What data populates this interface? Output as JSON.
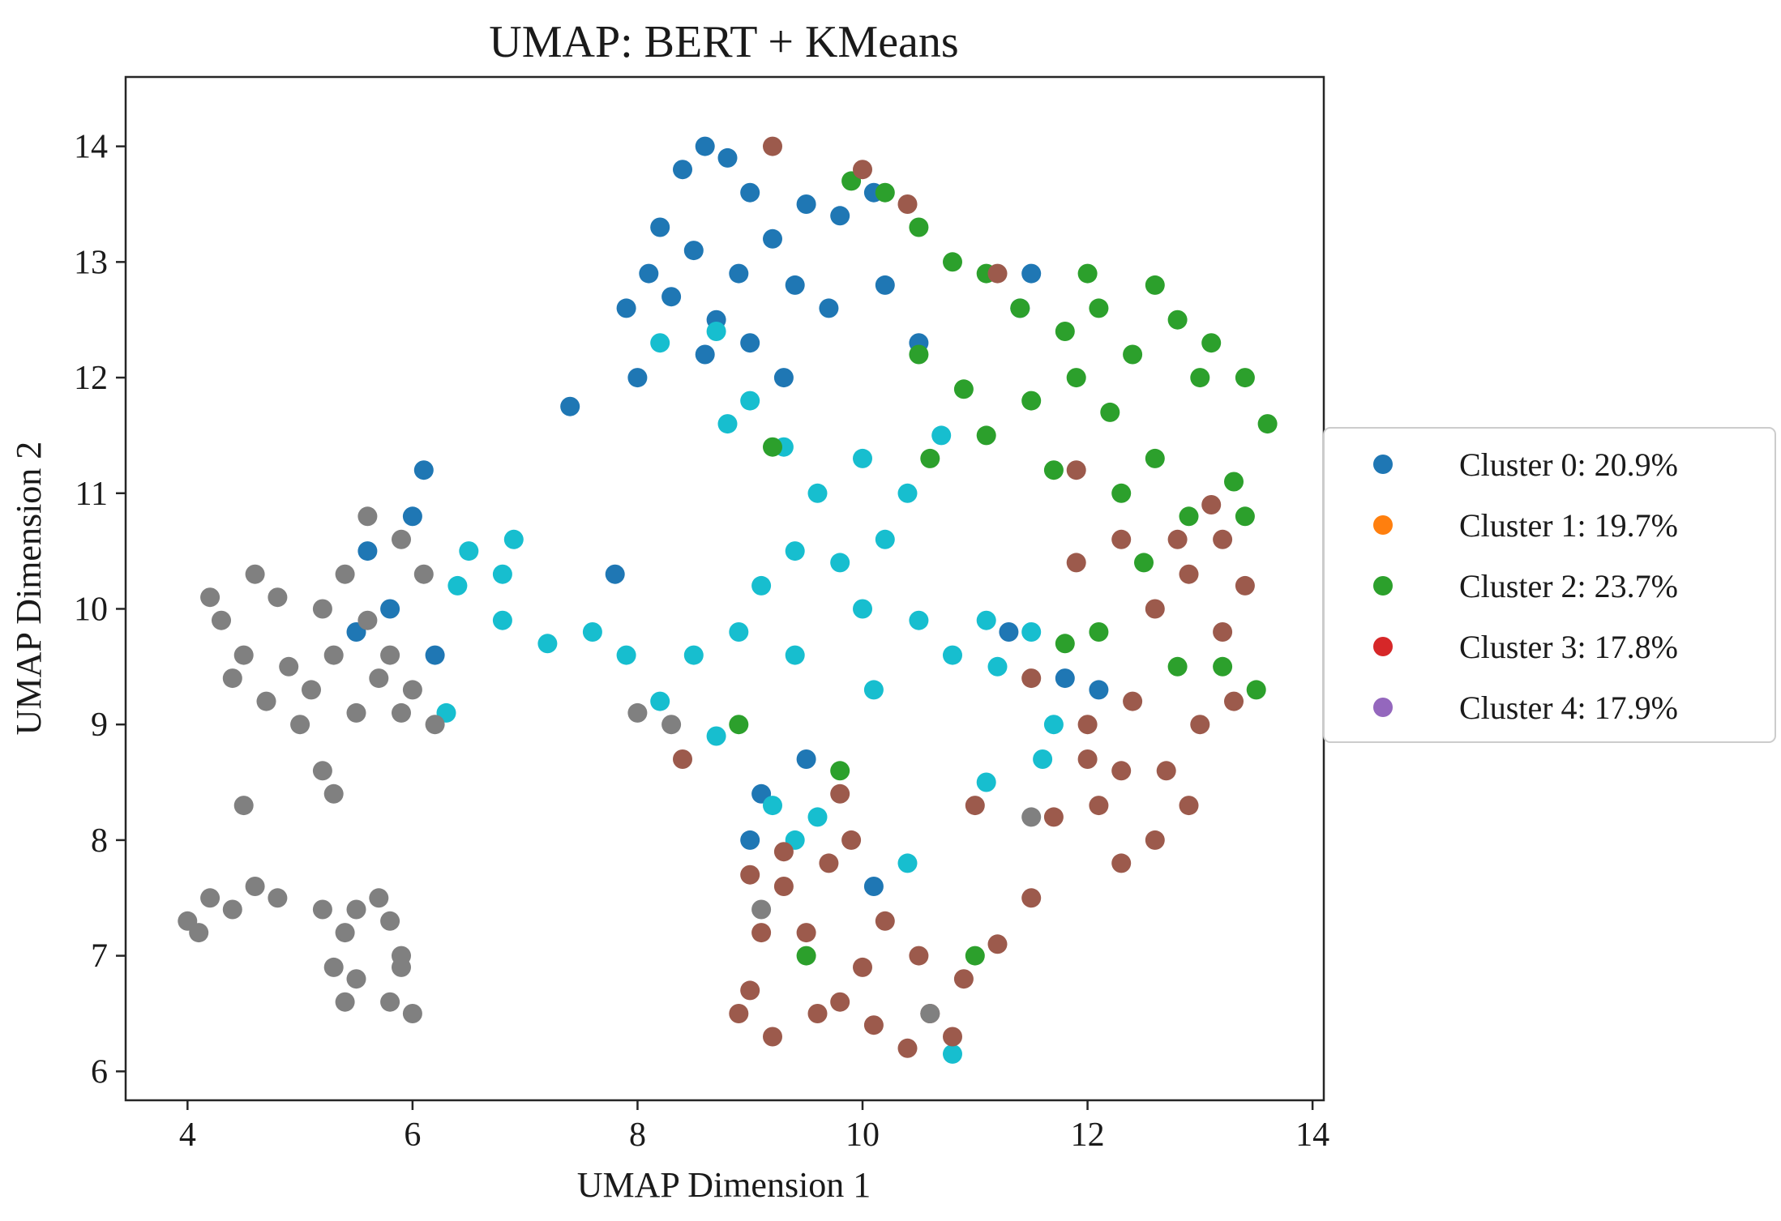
{
  "chart_data": {
    "type": "scatter",
    "title": "UMAP: BERT + KMeans",
    "xlabel": "UMAP Dimension 1",
    "ylabel": "UMAP Dimension 2",
    "xlim": [
      3.45,
      14.1
    ],
    "ylim": [
      5.75,
      14.6
    ],
    "xticks": [
      4,
      6,
      8,
      10,
      12,
      14
    ],
    "yticks": [
      6,
      7,
      8,
      9,
      10,
      11,
      12,
      13,
      14
    ],
    "grid": false,
    "legend_placement": "right, outside plot",
    "legend": [
      {
        "label": "Cluster 0: 20.9%",
        "color": "#1f77b4"
      },
      {
        "label": "Cluster 1: 19.7%",
        "color": "#ff7f0e"
      },
      {
        "label": "Cluster 2: 23.7%",
        "color": "#2ca02c"
      },
      {
        "label": "Cluster 3: 17.8%",
        "color": "#d62728"
      },
      {
        "label": "Cluster 4: 17.9%",
        "color": "#9467bd"
      }
    ],
    "series": [
      {
        "color": "#1f77b4",
        "points": [
          [
            8.2,
            13.3
          ],
          [
            8.4,
            13.8
          ],
          [
            8.6,
            14.0
          ],
          [
            8.8,
            13.9
          ],
          [
            9.0,
            13.6
          ],
          [
            8.5,
            13.1
          ],
          [
            8.3,
            12.7
          ],
          [
            8.7,
            12.5
          ],
          [
            9.2,
            13.2
          ],
          [
            9.5,
            13.5
          ],
          [
            9.8,
            13.4
          ],
          [
            10.1,
            13.6
          ],
          [
            8.1,
            12.9
          ],
          [
            7.9,
            12.6
          ],
          [
            8.9,
            12.9
          ],
          [
            9.4,
            12.8
          ],
          [
            9.7,
            12.6
          ],
          [
            10.2,
            12.8
          ],
          [
            8.6,
            12.2
          ],
          [
            9.0,
            12.3
          ],
          [
            7.4,
            11.75
          ],
          [
            8.0,
            12.0
          ],
          [
            9.3,
            12.0
          ],
          [
            10.5,
            12.3
          ],
          [
            11.5,
            12.9
          ],
          [
            11.4,
            12.6
          ],
          [
            5.6,
            10.5
          ],
          [
            5.8,
            10.0
          ],
          [
            6.0,
            10.8
          ],
          [
            6.1,
            11.2
          ],
          [
            5.5,
            9.8
          ],
          [
            6.2,
            9.6
          ],
          [
            7.8,
            10.3
          ],
          [
            11.3,
            9.8
          ],
          [
            11.8,
            9.4
          ],
          [
            12.1,
            9.3
          ],
          [
            9.5,
            8.7
          ],
          [
            9.1,
            8.4
          ],
          [
            10.1,
            7.6
          ],
          [
            9.0,
            8.0
          ]
        ]
      },
      {
        "color": "#17becf",
        "points": [
          [
            8.7,
            12.4
          ],
          [
            9.0,
            11.8
          ],
          [
            9.3,
            11.4
          ],
          [
            9.6,
            11.0
          ],
          [
            10.0,
            11.3
          ],
          [
            10.4,
            11.0
          ],
          [
            10.2,
            10.6
          ],
          [
            9.8,
            10.4
          ],
          [
            9.4,
            10.5
          ],
          [
            9.1,
            10.2
          ],
          [
            8.9,
            9.8
          ],
          [
            9.4,
            9.6
          ],
          [
            10.0,
            10.0
          ],
          [
            10.5,
            9.9
          ],
          [
            10.8,
            9.6
          ],
          [
            11.2,
            9.5
          ],
          [
            11.5,
            9.8
          ],
          [
            11.1,
            9.9
          ],
          [
            11.7,
            9.0
          ],
          [
            8.5,
            9.6
          ],
          [
            8.2,
            9.2
          ],
          [
            8.7,
            8.9
          ],
          [
            9.2,
            8.3
          ],
          [
            9.6,
            8.2
          ],
          [
            9.4,
            8.0
          ],
          [
            7.6,
            9.8
          ],
          [
            7.2,
            9.7
          ],
          [
            6.8,
            9.9
          ],
          [
            6.5,
            10.5
          ],
          [
            6.8,
            10.3
          ],
          [
            6.9,
            10.6
          ],
          [
            6.4,
            10.2
          ],
          [
            6.3,
            9.1
          ],
          [
            10.1,
            9.3
          ],
          [
            11.1,
            8.5
          ],
          [
            10.4,
            7.8
          ],
          [
            8.2,
            12.3
          ],
          [
            8.8,
            11.6
          ],
          [
            10.7,
            11.5
          ],
          [
            7.9,
            9.6
          ],
          [
            11.6,
            8.7
          ],
          [
            10.8,
            6.15
          ]
        ]
      },
      {
        "color": "#2ca02c",
        "points": [
          [
            10.2,
            13.6
          ],
          [
            10.5,
            13.3
          ],
          [
            10.8,
            13.0
          ],
          [
            11.1,
            12.9
          ],
          [
            11.4,
            12.6
          ],
          [
            11.8,
            12.4
          ],
          [
            12.1,
            12.6
          ],
          [
            12.4,
            12.2
          ],
          [
            12.8,
            12.5
          ],
          [
            13.1,
            12.3
          ],
          [
            13.4,
            12.0
          ],
          [
            13.6,
            11.6
          ],
          [
            13.3,
            11.1
          ],
          [
            12.9,
            10.8
          ],
          [
            12.6,
            11.3
          ],
          [
            12.2,
            11.7
          ],
          [
            11.9,
            12.0
          ],
          [
            11.5,
            11.8
          ],
          [
            11.1,
            11.5
          ],
          [
            10.6,
            11.3
          ],
          [
            10.9,
            11.9
          ],
          [
            10.5,
            12.2
          ],
          [
            12.0,
            12.9
          ],
          [
            12.6,
            12.8
          ],
          [
            13.0,
            12.0
          ],
          [
            13.4,
            10.8
          ],
          [
            12.5,
            10.4
          ],
          [
            12.1,
            9.8
          ],
          [
            11.8,
            9.7
          ],
          [
            13.2,
            9.5
          ],
          [
            12.8,
            9.5
          ],
          [
            13.5,
            9.3
          ],
          [
            9.9,
            13.7
          ],
          [
            9.2,
            11.4
          ],
          [
            9.8,
            8.6
          ],
          [
            9.5,
            7.0
          ],
          [
            11.0,
            7.0
          ],
          [
            8.9,
            9.0
          ],
          [
            11.7,
            11.2
          ],
          [
            12.3,
            11.0
          ]
        ]
      },
      {
        "color": "#9c5a4c",
        "points": [
          [
            12.6,
            10.0
          ],
          [
            12.9,
            10.3
          ],
          [
            13.2,
            10.6
          ],
          [
            13.4,
            10.2
          ],
          [
            13.2,
            9.8
          ],
          [
            13.3,
            9.2
          ],
          [
            13.0,
            9.0
          ],
          [
            12.7,
            8.6
          ],
          [
            12.9,
            8.3
          ],
          [
            12.6,
            8.0
          ],
          [
            12.3,
            7.8
          ],
          [
            12.1,
            8.3
          ],
          [
            12.4,
            9.2
          ],
          [
            12.3,
            8.6
          ],
          [
            12.0,
            8.7
          ],
          [
            11.7,
            8.2
          ],
          [
            11.5,
            7.5
          ],
          [
            11.2,
            7.1
          ],
          [
            10.9,
            6.8
          ],
          [
            10.6,
            6.5
          ],
          [
            10.4,
            6.2
          ],
          [
            10.1,
            6.4
          ],
          [
            10.0,
            6.9
          ],
          [
            10.2,
            7.3
          ],
          [
            10.5,
            7.0
          ],
          [
            10.8,
            6.3
          ],
          [
            9.8,
            6.6
          ],
          [
            9.2,
            6.3
          ],
          [
            9.0,
            6.7
          ],
          [
            9.1,
            7.2
          ],
          [
            9.3,
            7.6
          ],
          [
            9.5,
            7.2
          ],
          [
            9.6,
            6.5
          ],
          [
            8.9,
            6.5
          ],
          [
            9.7,
            7.8
          ],
          [
            9.9,
            8.0
          ],
          [
            9.3,
            7.9
          ],
          [
            9.0,
            7.7
          ],
          [
            11.2,
            12.9
          ],
          [
            11.9,
            11.2
          ],
          [
            11.9,
            10.4
          ],
          [
            12.3,
            10.6
          ],
          [
            10.4,
            13.5
          ],
          [
            9.2,
            14.0
          ],
          [
            10.0,
            13.8
          ],
          [
            12.8,
            10.6
          ],
          [
            13.1,
            10.9
          ],
          [
            8.4,
            8.7
          ],
          [
            11.0,
            8.3
          ],
          [
            11.5,
            9.4
          ],
          [
            12.0,
            9.0
          ],
          [
            9.8,
            8.4
          ]
        ]
      },
      {
        "color": "#808080",
        "points": [
          [
            4.2,
            10.1
          ],
          [
            4.6,
            10.3
          ],
          [
            4.8,
            10.1
          ],
          [
            4.5,
            9.6
          ],
          [
            4.9,
            9.5
          ],
          [
            5.1,
            9.3
          ],
          [
            5.3,
            9.6
          ],
          [
            5.2,
            10.0
          ],
          [
            5.4,
            10.3
          ],
          [
            5.6,
            9.9
          ],
          [
            5.7,
            9.4
          ],
          [
            5.9,
            9.1
          ],
          [
            5.8,
            9.6
          ],
          [
            6.0,
            9.3
          ],
          [
            6.2,
            9.0
          ],
          [
            5.5,
            9.1
          ],
          [
            5.0,
            9.0
          ],
          [
            4.7,
            9.2
          ],
          [
            4.4,
            9.4
          ],
          [
            4.3,
            9.9
          ],
          [
            5.9,
            10.6
          ],
          [
            5.6,
            10.8
          ],
          [
            6.1,
            10.3
          ],
          [
            5.3,
            8.4
          ],
          [
            4.5,
            8.3
          ],
          [
            5.2,
            8.6
          ],
          [
            4.0,
            7.3
          ],
          [
            4.2,
            7.5
          ],
          [
            4.4,
            7.4
          ],
          [
            4.6,
            7.6
          ],
          [
            4.8,
            7.5
          ],
          [
            4.1,
            7.2
          ],
          [
            5.2,
            7.4
          ],
          [
            5.4,
            7.2
          ],
          [
            5.3,
            6.9
          ],
          [
            5.5,
            6.8
          ],
          [
            5.4,
            6.6
          ],
          [
            5.8,
            6.6
          ],
          [
            5.9,
            6.9
          ],
          [
            5.8,
            7.3
          ],
          [
            5.7,
            7.5
          ],
          [
            6.0,
            6.5
          ],
          [
            5.9,
            7.0
          ],
          [
            5.5,
            7.4
          ],
          [
            8.0,
            9.1
          ],
          [
            8.3,
            9.0
          ],
          [
            9.1,
            7.4
          ],
          [
            10.6,
            6.5
          ],
          [
            11.5,
            8.2
          ]
        ]
      }
    ]
  }
}
